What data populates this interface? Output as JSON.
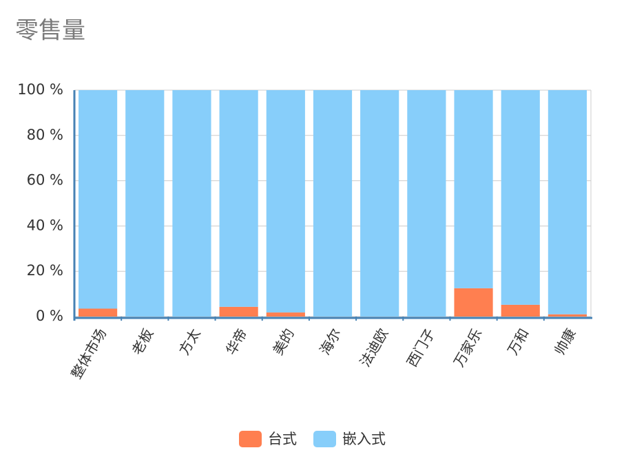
{
  "chart_data": {
    "type": "stacked_bar",
    "title": "零售量",
    "categories": [
      "整体市场",
      "老板",
      "方太",
      "华帝",
      "美的",
      "海尔",
      "法迪欧",
      "西门子",
      "万家乐",
      "万和",
      "帅康"
    ],
    "series": [
      {
        "name": "台式",
        "color": "#ff7f50",
        "values": [
          3.5,
          0,
          0,
          4.3,
          1.8,
          0,
          0,
          0,
          12.5,
          5.2,
          1
        ]
      },
      {
        "name": "嵌入式",
        "color": "#87cefa",
        "values": [
          96.5,
          100,
          100,
          95.7,
          98.2,
          100,
          100,
          100,
          87.5,
          94.8,
          99
        ]
      }
    ],
    "ylim": [
      0,
      100
    ],
    "yticks": [
      {
        "value": 0,
        "label": "0 %"
      },
      {
        "value": 20,
        "label": "20 %"
      },
      {
        "value": 40,
        "label": "40 %"
      },
      {
        "value": 60,
        "label": "60 %"
      },
      {
        "value": 80,
        "label": "80 %"
      },
      {
        "value": 100,
        "label": "100 %"
      }
    ],
    "grid": true
  }
}
